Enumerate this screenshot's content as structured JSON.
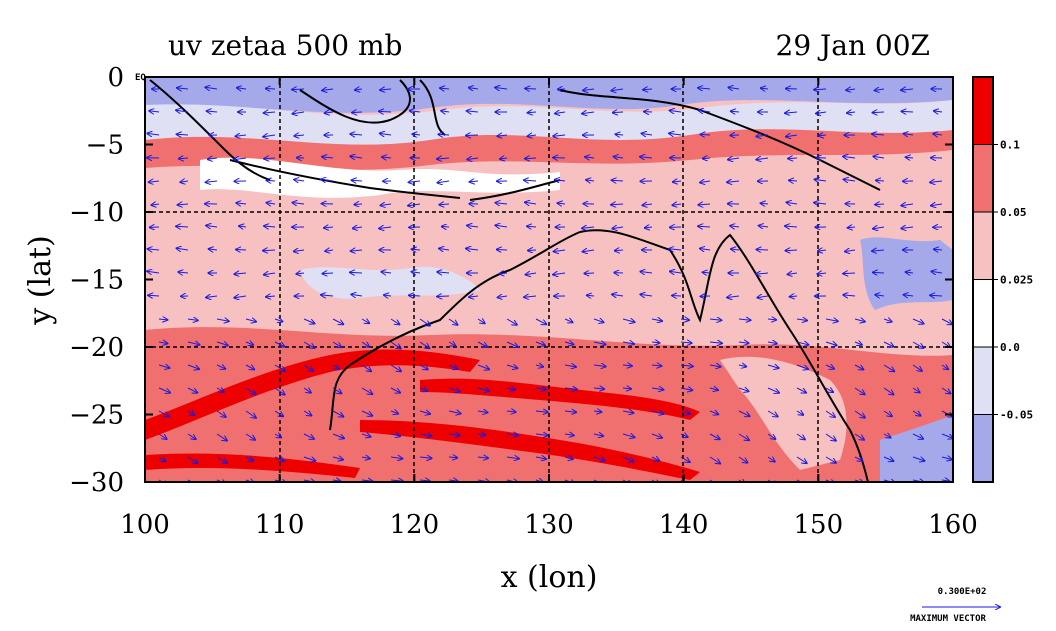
{
  "chart_data": {
    "type": "heatmap",
    "title_left": "uv zetaa 500 mb",
    "title_right": "29 Jan 00Z",
    "xlabel": "x (lon)",
    "ylabel": "y (lat)",
    "xlim": [
      100,
      160
    ],
    "ylim": [
      -30,
      0
    ],
    "x_ticks": [
      100,
      110,
      120,
      130,
      140,
      150,
      160
    ],
    "y_ticks": [
      0,
      -5,
      -10,
      -15,
      -20,
      -25,
      -30
    ],
    "x_tick_labels": [
      "100",
      "110",
      "120",
      "130",
      "140",
      "150",
      "160"
    ],
    "y_tick_labels": [
      "0",
      "−5",
      "−10",
      "−15",
      "−20",
      "−25",
      "−30"
    ],
    "grid": true,
    "corner_label": "EQ",
    "colorbar": {
      "levels": [
        "0.1",
        "0.05",
        "0.025",
        "0.0",
        "-0.05"
      ],
      "colors": [
        "#ee0000",
        "#f07070",
        "#f7c1c1",
        "#ffffff",
        "#e0e0f5",
        "#a5a9ea"
      ]
    },
    "vector_legend": {
      "value": "0.300E+02",
      "label": "MAXIMUM VECTOR"
    },
    "colors": {
      "strong_positive": "#ee0000",
      "positive": "#f07070",
      "weak_positive": "#f7c1c1",
      "neutral": "#ffffff",
      "weak_negative": "#e0e0f5",
      "negative": "#a5a9ea",
      "vectors": "#1a1ae0",
      "coastline": "#000000"
    }
  }
}
